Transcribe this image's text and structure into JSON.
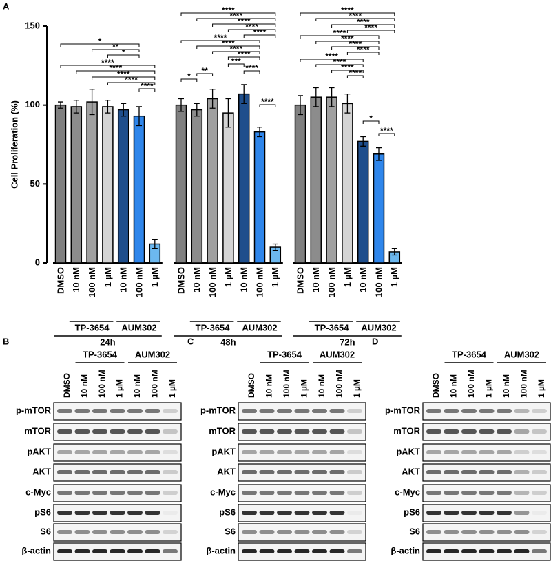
{
  "chart_data": {
    "type": "bar",
    "panel_label": "A",
    "y_label": "Cell Proliferation (%)",
    "ylim": [
      0,
      150
    ],
    "yticks": [
      0,
      50,
      100,
      150
    ],
    "groups": [
      {
        "name": "24h",
        "compound_labels": [
          "TP-3654",
          "AUM302"
        ],
        "categories": [
          "DMSO",
          "10 nM",
          "100 nM",
          "1 µM",
          "10 nM",
          "100 nM",
          "1 µM"
        ],
        "values": [
          100,
          99,
          102,
          99,
          97,
          93,
          12
        ],
        "errors": [
          2,
          4,
          8,
          4,
          4,
          6,
          3
        ],
        "colors": [
          "#808080",
          "#8c8c8c",
          "#a0a0a0",
          "#d4d4d4",
          "#1f4e8c",
          "#2f86eb",
          "#6cb8ef"
        ],
        "significance": [
          "*",
          "**",
          "*",
          "****",
          "****",
          "****",
          "****",
          "****"
        ]
      },
      {
        "name": "48h",
        "compound_labels": [
          "TP-3654",
          "AUM302"
        ],
        "categories": [
          "DMSO",
          "10 nM",
          "100 nM",
          "1 µM",
          "10 nM",
          "100 nM",
          "1 µM"
        ],
        "values": [
          100,
          97,
          104,
          95,
          107,
          83,
          10
        ],
        "errors": [
          4,
          4,
          6,
          9,
          6,
          3,
          2
        ],
        "colors": [
          "#808080",
          "#8c8c8c",
          "#a0a0a0",
          "#d4d4d4",
          "#1f4e8c",
          "#2f86eb",
          "#6cb8ef"
        ],
        "significance": [
          "****",
          "****",
          "****",
          "****",
          "****",
          "****",
          "****",
          "****",
          "****",
          "***",
          "****",
          "**",
          "*",
          "****"
        ]
      },
      {
        "name": "72h",
        "compound_labels": [
          "TP-3654",
          "AUM302"
        ],
        "categories": [
          "DMSO",
          "10 nM",
          "100 nM",
          "1 µM",
          "10 nM",
          "100 nM",
          "1 µM"
        ],
        "values": [
          100,
          105,
          105,
          101,
          77,
          69,
          7
        ],
        "errors": [
          6,
          6,
          6,
          6,
          3,
          4,
          2
        ],
        "colors": [
          "#808080",
          "#8c8c8c",
          "#a0a0a0",
          "#d4d4d4",
          "#1f4e8c",
          "#2f86eb",
          "#6cb8ef"
        ],
        "significance": [
          "****",
          "****",
          "****",
          "****",
          "****",
          "****",
          "****",
          "****",
          "****",
          "****",
          "****",
          "****",
          "*",
          "****"
        ]
      }
    ]
  },
  "blots": [
    {
      "label": "B",
      "compounds": [
        "TP-3654",
        "AUM302"
      ],
      "lanes": [
        "DMSO",
        "10 nM",
        "100 nM",
        "1 µM",
        "10 nM",
        "100 nM",
        "1 µM"
      ],
      "rows": [
        "p-mTOR",
        "mTOR",
        "pAKT",
        "AKT",
        "c-Myc",
        "pS6",
        "S6",
        "β-actin"
      ]
    },
    {
      "label": "C",
      "compounds": [
        "TP-3654",
        "AUM302"
      ],
      "lanes": [
        "DMSO",
        "10 nM",
        "100 nM",
        "1 µM",
        "10 nM",
        "100 nM",
        "1 µM"
      ],
      "rows": [
        "p-mTOR",
        "mTOR",
        "pAKT",
        "AKT",
        "c-Myc",
        "pS6",
        "S6",
        "β-actin"
      ]
    },
    {
      "label": "D",
      "compounds": [
        "TP-3654",
        "AUM302"
      ],
      "lanes": [
        "DMSO",
        "10 nM",
        "100 nM",
        "1 µM",
        "10 nM",
        "100 nM",
        "1 µM"
      ],
      "rows": [
        "p-mTOR",
        "mTOR",
        "pAKT",
        "AKT",
        "c-Myc",
        "pS6",
        "S6",
        "β-actin"
      ]
    }
  ]
}
